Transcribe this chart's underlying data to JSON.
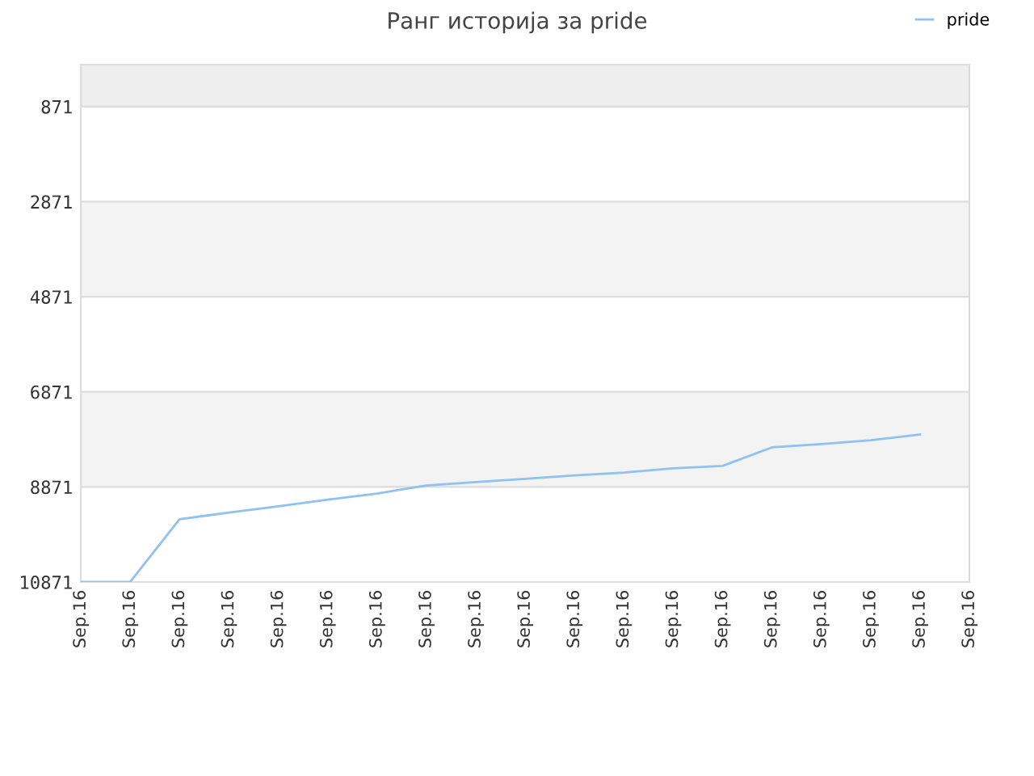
{
  "chart_data": {
    "type": "line",
    "title": "Ранг историја за pride",
    "categories": [
      "Sep.16",
      "Sep.16",
      "Sep.16",
      "Sep.16",
      "Sep.16",
      "Sep.16",
      "Sep.16",
      "Sep.16",
      "Sep.16",
      "Sep.16",
      "Sep.16",
      "Sep.16",
      "Sep.16",
      "Sep.16",
      "Sep.16",
      "Sep.16",
      "Sep.16",
      "Sep.16",
      "Sep.16"
    ],
    "series": [
      {
        "name": "pride",
        "color": "#8fc1f2",
        "values": [
          10870,
          10870,
          9550,
          9410,
          9280,
          9140,
          9010,
          8840,
          8770,
          8700,
          8630,
          8570,
          8480,
          8430,
          8040,
          7970,
          7890,
          7770,
          null
        ]
      }
    ],
    "ylim": [
      10871,
      -10
    ],
    "yticks": [
      871,
      2871,
      4871,
      6871,
      8871,
      10871
    ],
    "bands": [
      {
        "axis": "y",
        "from": -10,
        "to": 871,
        "color": "#eeeeee"
      },
      {
        "axis": "y",
        "from": 2871,
        "to": 4871,
        "color": "#f3f3f3"
      },
      {
        "axis": "y",
        "from": 6871,
        "to": 8871,
        "color": "#f3f3f3"
      }
    ],
    "grid": "y",
    "legend": "top right",
    "marker": "none",
    "line_style": "solid"
  }
}
